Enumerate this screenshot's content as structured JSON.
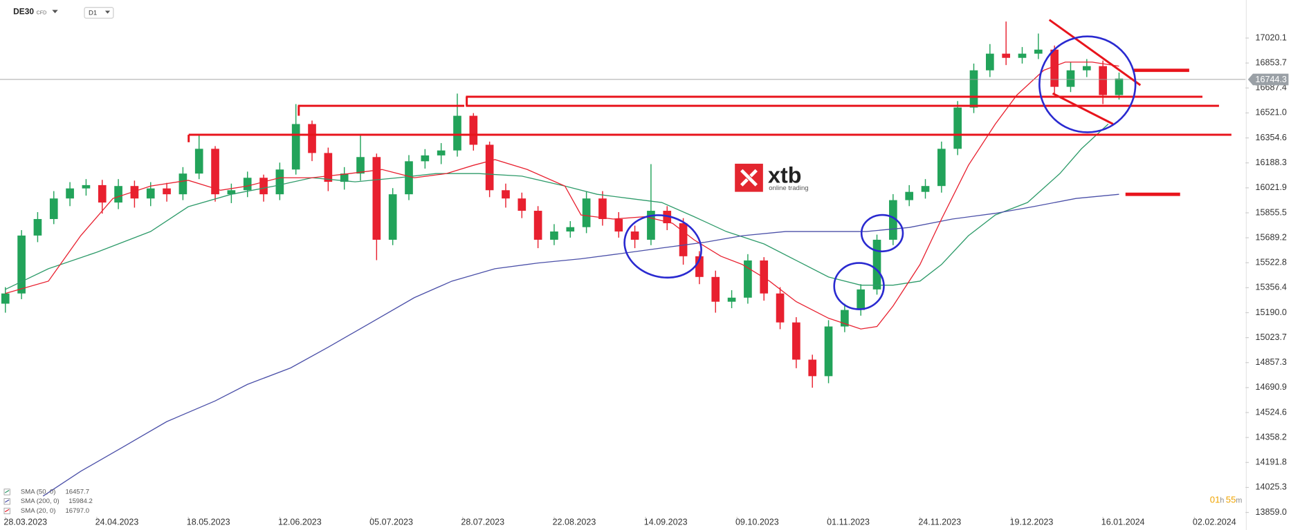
{
  "chart_data": {
    "type": "candlestick",
    "symbol": "DE30",
    "instrument_type": "CFD",
    "timeframe": "D1",
    "up_color": "#22a35a",
    "down_color": "#e8202f",
    "x": [
      0,
      3,
      6,
      9,
      12,
      15,
      18,
      21,
      24,
      27,
      30,
      33,
      36,
      39,
      42,
      45,
      48,
      51,
      54,
      57,
      60,
      63,
      66,
      69,
      72,
      75,
      78,
      81,
      84,
      87,
      90,
      93,
      96,
      99,
      102,
      105,
      108,
      111,
      114,
      117,
      120,
      123,
      126,
      129,
      132,
      135,
      138,
      141,
      144,
      147,
      150,
      153,
      156,
      159,
      162,
      165,
      168,
      171,
      174,
      177,
      180,
      183,
      186,
      189,
      192,
      195,
      198,
      201,
      204,
      207
    ],
    "open": [
      15250,
      15318,
      15704,
      15814,
      15951,
      16018,
      16040,
      15924,
      16034,
      15951,
      16018,
      15979,
      16117,
      16282,
      15979,
      16006,
      16089,
      15979,
      16144,
      16447,
      16254,
      16062,
      16117,
      16227,
      15676,
      15979,
      16199,
      16238,
      16271,
      16502,
      16309,
      16006,
      15951,
      15869,
      15676,
      15731,
      15760,
      15951,
      15814,
      15731,
      15676,
      15869,
      15786,
      15566,
      15428,
      15263,
      15290,
      15538,
      15318,
      15125,
      14877,
      14767,
      15098,
      15208,
      15345,
      15676,
      15940,
      15995,
      16034,
      16282,
      16557,
      16805,
      16916,
      16888,
      16916,
      16943,
      16695,
      16805,
      16833,
      16640
    ],
    "high": [
      15360,
      15740,
      15860,
      16000,
      16060,
      16080,
      16075,
      16080,
      16070,
      16060,
      16055,
      16160,
      16370,
      16300,
      16050,
      16130,
      16110,
      16190,
      16580,
      16470,
      16290,
      16160,
      16370,
      16250,
      16020,
      16240,
      16280,
      16320,
      16650,
      16520,
      16330,
      16050,
      15990,
      15900,
      15780,
      15800,
      16000,
      16000,
      15860,
      15770,
      16180,
      15900,
      15820,
      15600,
      15470,
      15340,
      15580,
      15560,
      15360,
      15160,
      14910,
      15140,
      15250,
      15380,
      15710,
      15980,
      16040,
      16080,
      16330,
      16600,
      16850,
      16980,
      17130,
      16960,
      17050,
      16970,
      16860,
      16880,
      16870,
      16790
    ],
    "low": [
      15190,
      15280,
      15660,
      15780,
      15900,
      15970,
      15850,
      15880,
      15890,
      15900,
      15930,
      15940,
      16080,
      15930,
      15920,
      15960,
      15930,
      15940,
      16110,
      16200,
      16000,
      16010,
      16070,
      15540,
      15640,
      15940,
      16150,
      16180,
      16230,
      16270,
      15960,
      15890,
      15820,
      15620,
      15640,
      15690,
      15720,
      15770,
      15690,
      15620,
      15640,
      15740,
      15510,
      15380,
      15190,
      15220,
      15250,
      15270,
      15080,
      14820,
      14690,
      14720,
      15060,
      15170,
      15310,
      15640,
      15900,
      15950,
      15990,
      16240,
      16520,
      16760,
      16840,
      16850,
      16880,
      16650,
      16660,
      16760,
      16580,
      16610
    ],
    "close": [
      15318,
      15704,
      15814,
      15951,
      16018,
      16040,
      15924,
      16034,
      15951,
      16018,
      15979,
      16117,
      16282,
      15979,
      16006,
      16089,
      15979,
      16144,
      16447,
      16254,
      16062,
      16117,
      16227,
      15676,
      15979,
      16199,
      16238,
      16271,
      16502,
      16309,
      16006,
      15951,
      15869,
      15676,
      15731,
      15760,
      15951,
      15814,
      15731,
      15676,
      15869,
      15786,
      15566,
      15428,
      15263,
      15290,
      15538,
      15318,
      15125,
      14877,
      14767,
      15098,
      15208,
      15345,
      15676,
      15940,
      15995,
      16034,
      16282,
      16557,
      16805,
      16916,
      16888,
      16916,
      16943,
      16695,
      16805,
      16833,
      16640,
      16750
    ],
    "series": [
      {
        "name": "SMA (50, 0)",
        "color": "#2e9b6a",
        "last": 16457.7,
        "x": [
          0,
          8,
          17,
          27,
          34,
          42,
          50,
          57,
          65,
          73,
          80,
          88,
          96,
          104,
          110,
          116,
          122,
          128,
          134,
          141,
          147,
          153,
          159,
          165,
          170,
          174,
          179,
          184,
          190,
          196,
          200,
          205
        ],
        "values": [
          15345,
          15483,
          15593,
          15731,
          15896,
          15979,
          16034,
          16089,
          16062,
          16089,
          16117,
          16117,
          16100,
          16034,
          15979,
          15951,
          15924,
          15830,
          15731,
          15648,
          15538,
          15428,
          15373,
          15373,
          15400,
          15511,
          15703,
          15841,
          15924,
          16117,
          16282,
          16447
        ]
      },
      {
        "name": "SMA (200, 0)",
        "color": "#4a4fa8",
        "last": 15984.2,
        "x": [
          7,
          14,
          22,
          30,
          39,
          45,
          53,
          60,
          68,
          76,
          83,
          91,
          99,
          107,
          114,
          122,
          130,
          137,
          145,
          153,
          160,
          168,
          176,
          184,
          191,
          199,
          207
        ],
        "values": [
          13968,
          14133,
          14298,
          14464,
          14602,
          14712,
          14822,
          14960,
          15125,
          15290,
          15400,
          15483,
          15521,
          15549,
          15582,
          15621,
          15659,
          15703,
          15731,
          15731,
          15731,
          15758,
          15814,
          15852,
          15896,
          15951,
          15979
        ]
      },
      {
        "name": "SMA (20, 0)",
        "color": "#e8202f",
        "last": 16797,
        "last_label": "16797.0",
        "x": [
          0,
          8,
          14,
          20,
          27,
          34,
          40,
          45,
          51,
          57,
          64,
          70,
          76,
          82,
          87,
          91,
          97,
          104,
          107,
          113,
          119,
          124,
          128,
          133,
          137,
          142,
          147,
          153,
          159,
          162,
          165,
          170,
          174,
          179,
          184,
          188,
          193,
          197,
          202,
          207
        ],
        "values": [
          15318,
          15400,
          15703,
          15951,
          16034,
          16072,
          16006,
          16034,
          16089,
          16089,
          16117,
          16144,
          16089,
          16117,
          16172,
          16210,
          16144,
          16034,
          15841,
          15814,
          15830,
          15786,
          15676,
          15566,
          15511,
          15401,
          15263,
          15153,
          15081,
          15098,
          15235,
          15511,
          15814,
          16172,
          16447,
          16640,
          16805,
          16860,
          16860,
          16833
        ]
      }
    ],
    "last_price": 16744.3,
    "xlim": [
      -1,
      230.5
    ],
    "xticks": [
      {
        "value": 0,
        "label": "28.03.2023"
      },
      {
        "value": 17,
        "label": "24.04.2023"
      },
      {
        "value": 34,
        "label": "18.05.2023"
      },
      {
        "value": 51,
        "label": "12.06.2023"
      },
      {
        "value": 68,
        "label": "05.07.2023"
      },
      {
        "value": 85,
        "label": "28.07.2023"
      },
      {
        "value": 102,
        "label": "22.08.2023"
      },
      {
        "value": 119,
        "label": "14.09.2023"
      },
      {
        "value": 136,
        "label": "09.10.2023"
      },
      {
        "value": 153,
        "label": "01.11.2023"
      },
      {
        "value": 170,
        "label": "24.11.2023"
      },
      {
        "value": 187,
        "label": "19.12.2023"
      },
      {
        "value": 204,
        "label": "16.01.2024"
      },
      {
        "value": 221,
        "label": "02.02.2024"
      }
    ],
    "ylim": [
      13830,
      17246
    ],
    "yticks": [
      {
        "value": 13859,
        "label": "13859.0"
      },
      14025.3,
      14191.8,
      14358.2,
      14524.6,
      14690.9,
      14857.3,
      15023.7,
      {
        "value": 15190,
        "label": "15190.0"
      },
      15356.4,
      15522.8,
      15689.2,
      15855.5,
      16021.9,
      16188.3,
      16354.6,
      {
        "value": 16521,
        "label": "16521.0"
      },
      16687.4,
      16853.7,
      17020.1
    ]
  },
  "logo": {
    "name": "xtb",
    "tagline": "online trading"
  },
  "countdown": [
    "01",
    "h",
    "55",
    "m"
  ]
}
